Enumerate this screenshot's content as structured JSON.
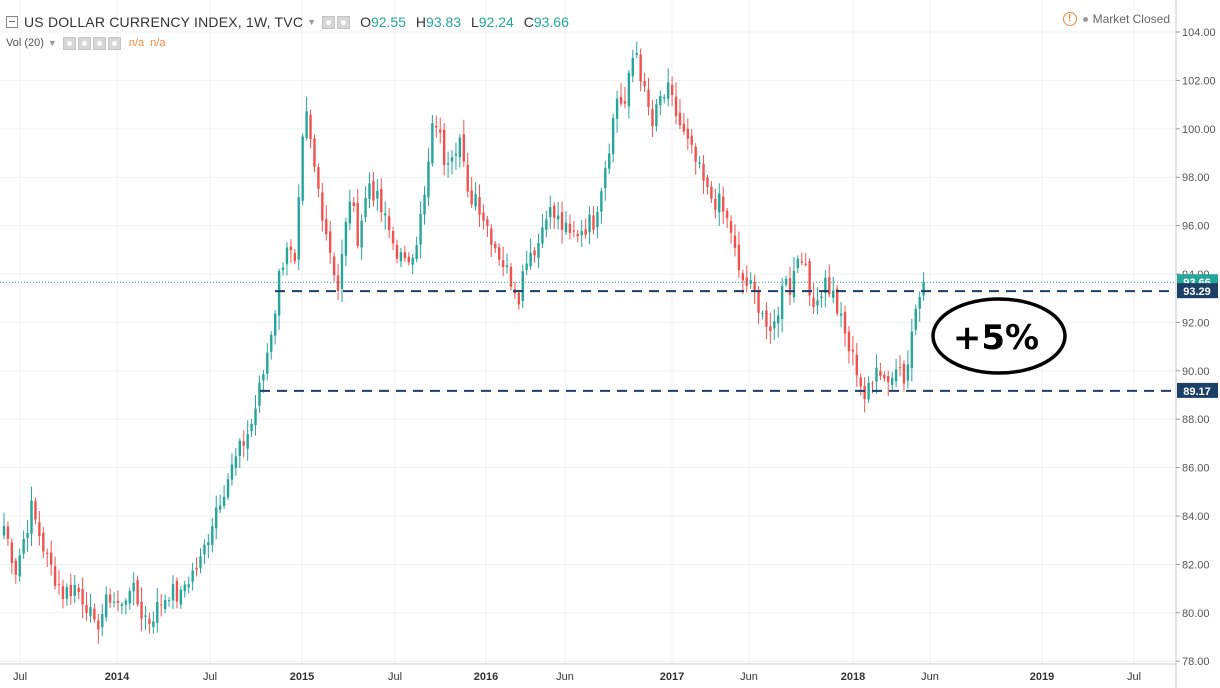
{
  "header": {
    "title": "US DOLLAR CURRENCY INDEX, 1W, TVC",
    "ohlc": {
      "o_label": "O",
      "o": "92.55",
      "h_label": "H",
      "h": "93.83",
      "l_label": "L",
      "l": "92.24",
      "c_label": "C",
      "c": "93.66"
    },
    "volume": {
      "label": "Vol (20)",
      "v1": "n/a",
      "v2": "n/a"
    },
    "market_status": "Market Closed"
  },
  "colors": {
    "up": "#26a69a",
    "down": "#ef5350",
    "price_line": "#26a69a",
    "level": "#1c3f66",
    "grid": "#eef1f4",
    "axis_text": "#555555"
  },
  "chart_data": {
    "type": "candlestick",
    "xlabels": [
      "Jul",
      "2014",
      "Jul",
      "2015",
      "Jul",
      "2016",
      "Jun",
      "2017",
      "Jun",
      "2018",
      "Jun",
      "2019",
      "Jul"
    ],
    "yticks": [
      "78.00",
      "80.00",
      "82.00",
      "84.00",
      "86.00",
      "88.00",
      "90.00",
      "92.00",
      "94.00",
      "96.00",
      "98.00",
      "100.00",
      "102.00",
      "104.00"
    ],
    "ylim": [
      77.5,
      104.7
    ],
    "close_path": [
      [
        0,
        83.6
      ],
      [
        3,
        81.8
      ],
      [
        7,
        84.3
      ],
      [
        11,
        82.2
      ],
      [
        15,
        80.8
      ],
      [
        18,
        81.1
      ],
      [
        21,
        80.4
      ],
      [
        23,
        79.3
      ],
      [
        27,
        80.7
      ],
      [
        30,
        80.2
      ],
      [
        32,
        81.2
      ],
      [
        35,
        80.0
      ],
      [
        37,
        79.7
      ],
      [
        39,
        80.2
      ],
      [
        42,
        80.9
      ],
      [
        45,
        80.6
      ],
      [
        46,
        81.2
      ],
      [
        50,
        82.1
      ],
      [
        54,
        84.4
      ],
      [
        57,
        85.6
      ],
      [
        60,
        86.7
      ],
      [
        63,
        87.8
      ],
      [
        66,
        89.9
      ],
      [
        69,
        92.6
      ],
      [
        70,
        93.9
      ],
      [
        72,
        95.3
      ],
      [
        74,
        94.2
      ],
      [
        76,
        99.3
      ],
      [
        77,
        100.4
      ],
      [
        79,
        98.3
      ],
      [
        82,
        95.8
      ],
      [
        85,
        93.4
      ],
      [
        88,
        97.2
      ],
      [
        90,
        95.6
      ],
      [
        93,
        97.8
      ],
      [
        96,
        96.6
      ],
      [
        99,
        95.3
      ],
      [
        102,
        94.3
      ],
      [
        105,
        95.5
      ],
      [
        107,
        97.1
      ],
      [
        109,
        99.9
      ],
      [
        110,
        100.3
      ],
      [
        112,
        98.8
      ],
      [
        114,
        99.2
      ],
      [
        116,
        99.6
      ],
      [
        118,
        97.1
      ],
      [
        120,
        97.3
      ],
      [
        122,
        96.4
      ],
      [
        125,
        95.2
      ],
      [
        128,
        94.1
      ],
      [
        131,
        93.2
      ],
      [
        133,
        94.8
      ],
      [
        136,
        95.3
      ],
      [
        138,
        96.7
      ],
      [
        141,
        96.2
      ],
      [
        144,
        95.5
      ],
      [
        147,
        95.9
      ],
      [
        150,
        96.2
      ],
      [
        152,
        97.7
      ],
      [
        154,
        99.4
      ],
      [
        156,
        101.3
      ],
      [
        158,
        101.0
      ],
      [
        160,
        102.9
      ],
      [
        161,
        103.2
      ],
      [
        163,
        101.4
      ],
      [
        165,
        100.1
      ],
      [
        167,
        101.2
      ],
      [
        169,
        101.5
      ],
      [
        171,
        100.6
      ],
      [
        173,
        99.7
      ],
      [
        176,
        98.6
      ],
      [
        179,
        97.3
      ],
      [
        182,
        96.9
      ],
      [
        185,
        95.8
      ],
      [
        187,
        93.9
      ],
      [
        190,
        93.4
      ],
      [
        193,
        92.5
      ],
      [
        195,
        91.2
      ],
      [
        197,
        92.6
      ],
      [
        199,
        94.1
      ],
      [
        200,
        93.4
      ],
      [
        202,
        94.8
      ],
      [
        203,
        94.9
      ],
      [
        205,
        93.1
      ],
      [
        207,
        93.0
      ],
      [
        209,
        93.7
      ],
      [
        211,
        93.1
      ],
      [
        213,
        92.0
      ],
      [
        215,
        90.9
      ],
      [
        217,
        90.1
      ],
      [
        219,
        88.9
      ],
      [
        221,
        89.4
      ],
      [
        222,
        90.5
      ],
      [
        224,
        89.7
      ],
      [
        226,
        89.8
      ],
      [
        228,
        90.3
      ],
      [
        229,
        89.9
      ],
      [
        231,
        91.4
      ],
      [
        232,
        92.6
      ],
      [
        233,
        93.0
      ],
      [
        234,
        93.66
      ]
    ],
    "candle_count": 235,
    "last_price": {
      "label": "93.66",
      "value": 93.66
    },
    "levels": [
      {
        "label": "93.29",
        "value": 93.29
      },
      {
        "label": "89.17",
        "value": 89.17
      }
    ],
    "annotation": {
      "text": "+5%"
    }
  }
}
